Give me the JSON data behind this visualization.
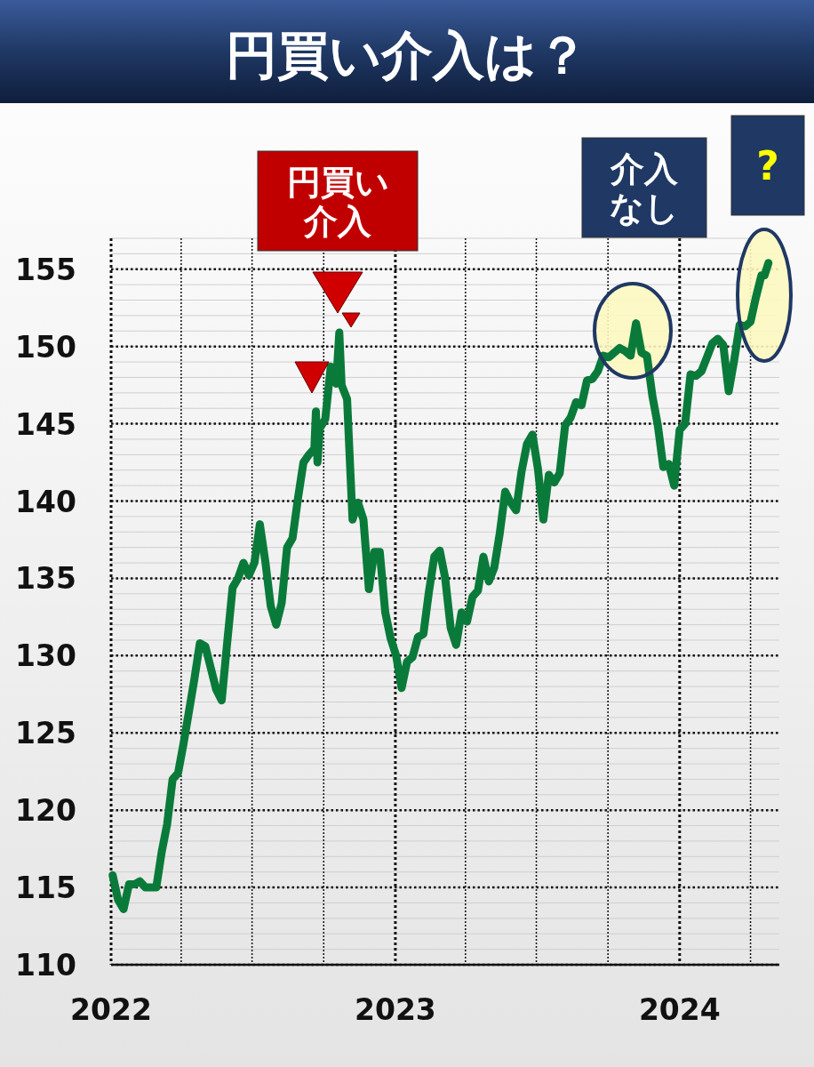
{
  "chart_data": {
    "type": "line",
    "title": "円買い介入は？",
    "annotations": [
      "円買い介入",
      "介入なし",
      "?"
    ],
    "x": [
      "2022-01-03",
      "2022-01-10",
      "2022-01-17",
      "2022-01-24",
      "2022-01-31",
      "2022-02-07",
      "2022-02-14",
      "2022-02-21",
      "2022-02-28",
      "2022-03-07",
      "2022-03-14",
      "2022-03-21",
      "2022-03-28",
      "2022-04-04",
      "2022-04-11",
      "2022-04-18",
      "2022-04-25",
      "2022-05-02",
      "2022-05-09",
      "2022-05-16",
      "2022-05-23",
      "2022-05-30",
      "2022-06-06",
      "2022-06-13",
      "2022-06-20",
      "2022-06-27",
      "2022-07-04",
      "2022-07-11",
      "2022-07-18",
      "2022-07-25",
      "2022-08-01",
      "2022-08-08",
      "2022-08-15",
      "2022-08-22",
      "2022-08-29",
      "2022-09-05",
      "2022-09-12",
      "2022-09-19",
      "2022-09-21",
      "2022-09-23",
      "2022-09-26",
      "2022-10-03",
      "2022-10-10",
      "2022-10-17",
      "2022-10-21",
      "2022-10-24",
      "2022-10-31",
      "2022-11-07",
      "2022-11-14",
      "2022-11-21",
      "2022-11-28",
      "2022-12-05",
      "2022-12-12",
      "2022-12-19",
      "2022-12-26",
      "2023-01-02",
      "2023-01-09",
      "2023-01-16",
      "2023-01-23",
      "2023-01-30",
      "2023-02-06",
      "2023-02-13",
      "2023-02-20",
      "2023-02-27",
      "2023-03-06",
      "2023-03-13",
      "2023-03-20",
      "2023-03-27",
      "2023-04-03",
      "2023-04-10",
      "2023-04-17",
      "2023-04-24",
      "2023-05-01",
      "2023-05-08",
      "2023-05-15",
      "2023-05-22",
      "2023-05-29",
      "2023-06-05",
      "2023-06-12",
      "2023-06-19",
      "2023-06-26",
      "2023-07-03",
      "2023-07-10",
      "2023-07-17",
      "2023-07-24",
      "2023-07-31",
      "2023-08-07",
      "2023-08-14",
      "2023-08-21",
      "2023-08-28",
      "2023-09-04",
      "2023-09-11",
      "2023-09-18",
      "2023-09-25",
      "2023-10-02",
      "2023-10-09",
      "2023-10-16",
      "2023-10-23",
      "2023-10-30",
      "2023-11-06",
      "2023-11-13",
      "2023-11-20",
      "2023-11-27",
      "2023-12-04",
      "2023-12-11",
      "2023-12-18",
      "2023-12-25",
      "2024-01-01",
      "2024-01-08",
      "2024-01-15",
      "2024-01-22",
      "2024-01-29",
      "2024-02-05",
      "2024-02-12",
      "2024-02-19",
      "2024-02-26",
      "2024-03-04",
      "2024-03-11",
      "2024-03-18",
      "2024-03-25",
      "2024-04-01",
      "2024-04-08",
      "2024-04-15",
      "2024-04-19",
      "2024-04-24"
    ],
    "series": [
      {
        "color": "#0a7a3a",
        "values": [
          115.8,
          114.2,
          113.6,
          115.2,
          115.2,
          115.4,
          115.0,
          115.0,
          115.0,
          117.3,
          119.1,
          122.0,
          122.4,
          124.3,
          126.4,
          128.5,
          130.8,
          130.6,
          129.2,
          127.8,
          127.1,
          130.8,
          134.4,
          135.0,
          136.0,
          135.2,
          136.0,
          138.5,
          136.1,
          133.2,
          132.0,
          133.4,
          137.0,
          137.6,
          140.2,
          142.5,
          143.0,
          143.4,
          145.8,
          142.5,
          144.7,
          145.3,
          148.7,
          147.6,
          150.9,
          147.5,
          146.6,
          138.8,
          139.9,
          138.8,
          134.3,
          136.7,
          136.7,
          132.8,
          131.1,
          130.0,
          127.9,
          129.6,
          129.9,
          131.2,
          131.4,
          134.1,
          136.4,
          136.8,
          135.0,
          131.8,
          130.7,
          132.8,
          132.2,
          133.8,
          134.2,
          136.4,
          134.8,
          135.7,
          137.9,
          140.6,
          139.9,
          139.4,
          141.9,
          143.7,
          144.3,
          142.1,
          138.8,
          141.7,
          141.2,
          141.8,
          144.9,
          145.4,
          146.4,
          146.2,
          147.8,
          147.9,
          148.4,
          149.4,
          149.3,
          149.6,
          149.9,
          149.7,
          149.4,
          151.5,
          149.6,
          149.4,
          146.8,
          144.9,
          142.2,
          142.4,
          141.0,
          144.6,
          145.0,
          148.2,
          148.1,
          148.4,
          149.3,
          150.2,
          150.5,
          150.1,
          147.1,
          149.1,
          151.4,
          151.3,
          151.6,
          153.2,
          154.6,
          154.6,
          155.4
        ]
      }
    ],
    "xlim": [
      "2022-01-01",
      "2024-05-08"
    ],
    "xticks": [
      {
        "value": "2022-01-01",
        "label": "2022"
      },
      {
        "value": "2022-04-01",
        "label": null
      },
      {
        "value": "2022-07-01",
        "label": null
      },
      {
        "value": "2022-10-01",
        "label": null
      },
      {
        "value": "2023-01-01",
        "label": "2023"
      },
      {
        "value": "2023-04-01",
        "label": null
      },
      {
        "value": "2023-07-01",
        "label": null
      },
      {
        "value": "2023-10-01",
        "label": null
      },
      {
        "value": "2024-01-01",
        "label": "2024"
      },
      {
        "value": "2024-04-01",
        "label": null
      }
    ],
    "ylim": [
      110,
      157
    ],
    "yticks": [
      110,
      115,
      120,
      125,
      130,
      135,
      140,
      145,
      150,
      155
    ],
    "grid": true
  }
}
